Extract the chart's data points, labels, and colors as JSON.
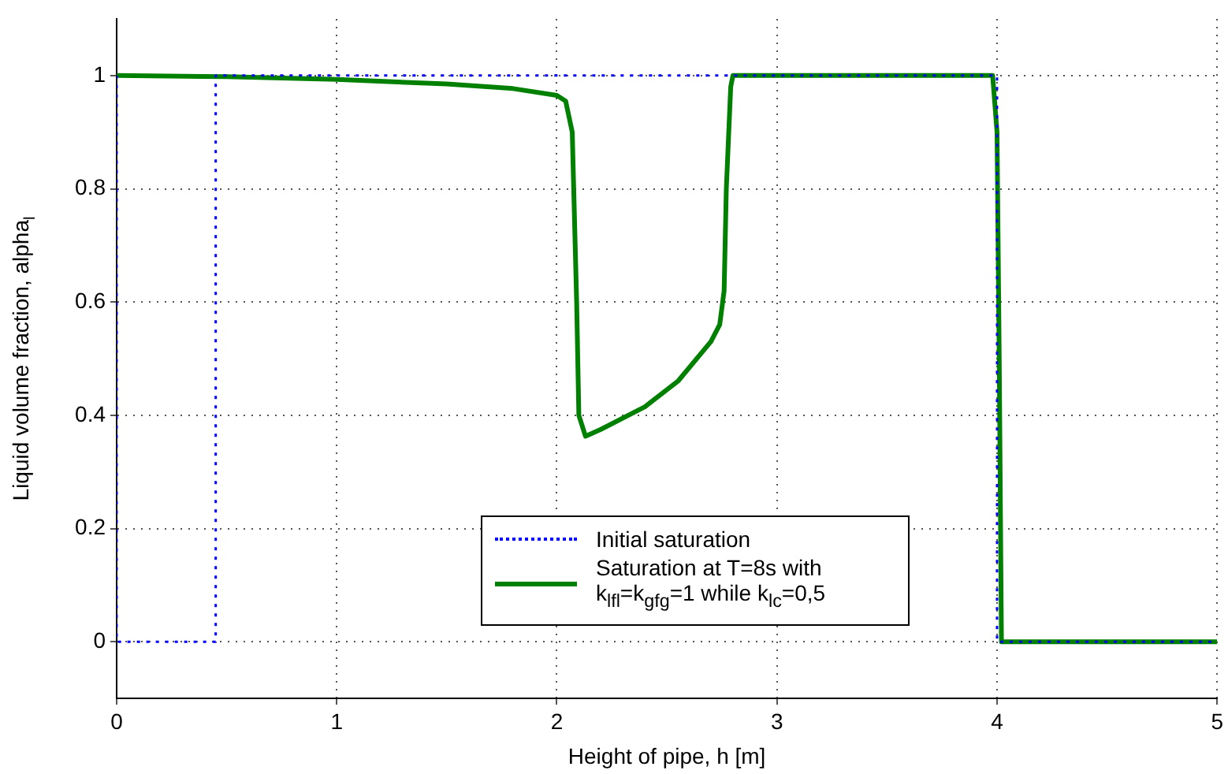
{
  "chart_data": {
    "type": "line",
    "xlabel": "Height of pipe, h [m]",
    "ylabel": "Liquid volume fraction, alpha$_{l}$",
    "xlim": [
      0,
      5
    ],
    "xticks": [
      0,
      1,
      2,
      3,
      4,
      5
    ],
    "ylim": [
      -0.1,
      1.1
    ],
    "yticks": [
      0,
      0.2,
      0.4,
      0.6,
      0.8,
      1
    ],
    "grid": true,
    "legend": "bottom",
    "marker": "none",
    "series": [
      {
        "name": "Initial saturation",
        "color": "#0000ff",
        "line_style": "dotted",
        "x": [
          0,
          0,
          0.45,
          0.45,
          4,
          4,
          5
        ],
        "values": [
          1,
          0,
          0,
          1,
          1,
          0,
          0
        ]
      },
      {
        "name": "Saturation at T=8s with k$_{lfl}$=k$_{gfg}$=1 while k$_{lc}$=0,5",
        "color": "#008000",
        "line_style": "solid",
        "x": [
          0,
          0.5,
          1,
          1.5,
          1.8,
          2.0,
          2.04,
          2.07,
          2.09,
          2.1,
          2.13,
          2.2,
          2.4,
          2.55,
          2.7,
          2.74,
          2.76,
          2.77,
          2.79,
          2.8,
          3.9,
          3.98,
          4.0,
          4.01,
          4.02,
          5
        ],
        "values": [
          1,
          0.998,
          0.993,
          0.985,
          0.977,
          0.965,
          0.955,
          0.9,
          0.6,
          0.4,
          0.363,
          0.375,
          0.415,
          0.46,
          0.53,
          0.56,
          0.62,
          0.8,
          0.98,
          1,
          1,
          1,
          0.9,
          0.5,
          0,
          0
        ]
      }
    ]
  }
}
